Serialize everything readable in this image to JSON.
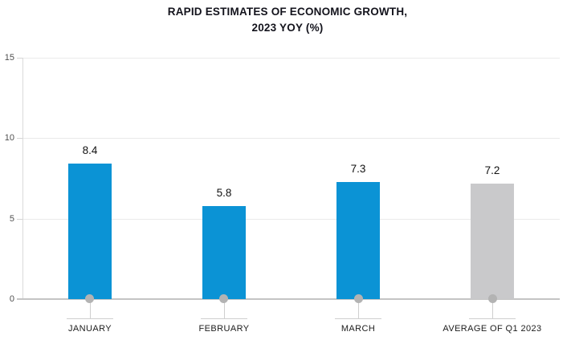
{
  "title": {
    "line1": "RAPID ESTIMATES OF ECONOMIC GROWTH,",
    "line2": "2023 YOY (%)"
  },
  "chart_data": {
    "type": "bar",
    "title": "RAPID ESTIMATES OF ECONOMIC GROWTH, 2023 YOY (%)",
    "categories": [
      "JANUARY",
      "FEBRUARY",
      "MARCH",
      "AVERAGE OF Q1 2023"
    ],
    "values": [
      8.4,
      5.8,
      7.3,
      7.2
    ],
    "value_labels": [
      "8.4",
      "5.8",
      "7.3",
      "7.2"
    ],
    "bar_colors": [
      "#0b93d5",
      "#0b93d5",
      "#0b93d5",
      "#c9c9cb"
    ],
    "xlabel": "",
    "ylabel": "",
    "ylim": [
      0,
      15
    ],
    "yticks": [
      0,
      5,
      10,
      15
    ],
    "ytick_labels": [
      "0",
      "5",
      "10",
      "15"
    ],
    "grid": true,
    "legend_position": "none"
  },
  "colors": {
    "background": "#ffffff",
    "title_text": "#13131c",
    "bar_blue": "#0b93d5",
    "bar_gray": "#c9c9cb",
    "value_label_text": "#111111",
    "axis_tick_text": "#4f4f4f",
    "category_label_text": "#1c1c1c",
    "gridline": "#eaeaea",
    "bottom_axis_line": "#c4c4c4",
    "category_marker": "#b3b3b3"
  }
}
